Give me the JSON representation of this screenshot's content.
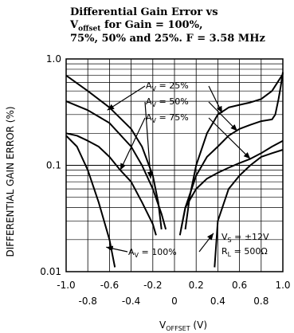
{
  "chart_data": {
    "type": "line",
    "title_lines": [
      "Differential Gain Error vs",
      "V",
      "offset",
      " for Gain = 100%,",
      "75%, 50% and 25%. F = 3.58 MHz"
    ],
    "title": "Differential Gain Error vs Voffset for Gain = 100%, 75%, 50% and 25%. F = 3.58 MHz",
    "xlabel": "V",
    "xlabel_sub": "OFFSET",
    "xlabel_unit": " (V)",
    "ylabel": "DIFFERENTIAL GAIN ERROR (%)",
    "xlim": [
      -1.0,
      1.0
    ],
    "ylim": [
      0.01,
      1.0
    ],
    "y_scale": "log",
    "grid": true,
    "x_ticks_top_row": [
      "-1.0",
      "-0.6",
      "-0.2",
      "0.2",
      "0.6",
      "1.0"
    ],
    "x_ticks_bottom_row": [
      "-0.8",
      "-0.4",
      "0",
      "0.4",
      "0.8"
    ],
    "y_tick_labels": [
      "1.0",
      "0.1",
      "0.01"
    ],
    "annotations": {
      "av25": {
        "pre": "A",
        "sub": "V",
        "post": " = 25%"
      },
      "av50": {
        "pre": "A",
        "sub": "V",
        "post": " = 50%"
      },
      "av75": {
        "pre": "A",
        "sub": "V",
        "post": " = 75%"
      },
      "av100": {
        "pre": "A",
        "sub": "V",
        "post": " = 100%"
      },
      "vs": {
        "pre": "V",
        "sub": "S",
        "post": " = ±12V"
      },
      "rl": {
        "pre": "R",
        "sub": "L",
        "post": " = 500Ω"
      }
    },
    "series": [
      {
        "name": "AV = 25%",
        "segments": [
          [
            [
              -1.0,
              0.7
            ],
            [
              -0.8,
              0.5
            ],
            [
              -0.6,
              0.35
            ],
            [
              -0.4,
              0.22
            ],
            [
              -0.3,
              0.15
            ],
            [
              -0.2,
              0.08
            ],
            [
              -0.15,
              0.045
            ],
            [
              -0.12,
              0.025
            ]
          ],
          [
            [
              0.1,
              0.025
            ],
            [
              0.14,
              0.05
            ],
            [
              0.2,
              0.1
            ],
            [
              0.3,
              0.2
            ],
            [
              0.4,
              0.3
            ],
            [
              0.5,
              0.35
            ],
            [
              0.6,
              0.37
            ],
            [
              0.7,
              0.39
            ],
            [
              0.8,
              0.42
            ],
            [
              0.9,
              0.5
            ],
            [
              0.95,
              0.6
            ],
            [
              1.0,
              0.72
            ]
          ]
        ]
      },
      {
        "name": "AV = 50%",
        "segments": [
          [
            [
              -1.0,
              0.4
            ],
            [
              -0.8,
              0.33
            ],
            [
              -0.6,
              0.25
            ],
            [
              -0.4,
              0.15
            ],
            [
              -0.3,
              0.1
            ],
            [
              -0.2,
              0.06
            ],
            [
              -0.12,
              0.035
            ],
            [
              -0.08,
              0.025
            ]
          ],
          [
            [
              0.06,
              0.025
            ],
            [
              0.1,
              0.04
            ],
            [
              0.2,
              0.08
            ],
            [
              0.3,
              0.12
            ],
            [
              0.4,
              0.15
            ],
            [
              0.5,
              0.19
            ],
            [
              0.6,
              0.22
            ],
            [
              0.7,
              0.24
            ],
            [
              0.8,
              0.26
            ],
            [
              0.9,
              0.27
            ],
            [
              0.93,
              0.3
            ],
            [
              0.96,
              0.42
            ],
            [
              0.98,
              0.55
            ],
            [
              1.0,
              0.75
            ]
          ]
        ]
      },
      {
        "name": "AV = 75%",
        "segments": [
          [
            [
              -1.0,
              0.2
            ],
            [
              -0.9,
              0.19
            ],
            [
              -0.8,
              0.17
            ],
            [
              -0.7,
              0.15
            ],
            [
              -0.6,
              0.12
            ],
            [
              -0.5,
              0.09
            ],
            [
              -0.4,
              0.07
            ],
            [
              -0.3,
              0.045
            ],
            [
              -0.2,
              0.028
            ],
            [
              -0.17,
              0.022
            ]
          ],
          [
            [
              0.05,
              0.022
            ],
            [
              0.1,
              0.04
            ],
            [
              0.2,
              0.06
            ],
            [
              0.3,
              0.075
            ],
            [
              0.4,
              0.085
            ],
            [
              0.5,
              0.095
            ],
            [
              0.6,
              0.105
            ],
            [
              0.7,
              0.115
            ],
            [
              0.8,
              0.13
            ],
            [
              0.9,
              0.15
            ],
            [
              1.0,
              0.17
            ]
          ]
        ]
      },
      {
        "name": "AV = 100%",
        "segments": [
          [
            [
              -1.0,
              0.19
            ],
            [
              -0.9,
              0.15
            ],
            [
              -0.8,
              0.09
            ],
            [
              -0.7,
              0.045
            ],
            [
              -0.6,
              0.02
            ],
            [
              -0.55,
              0.011
            ]
          ],
          [
            [
              0.37,
              0.011
            ],
            [
              0.4,
              0.03
            ],
            [
              0.5,
              0.06
            ],
            [
              0.6,
              0.08
            ],
            [
              0.7,
              0.1
            ],
            [
              0.8,
              0.12
            ],
            [
              0.9,
              0.13
            ],
            [
              1.0,
              0.14
            ]
          ]
        ]
      }
    ]
  }
}
